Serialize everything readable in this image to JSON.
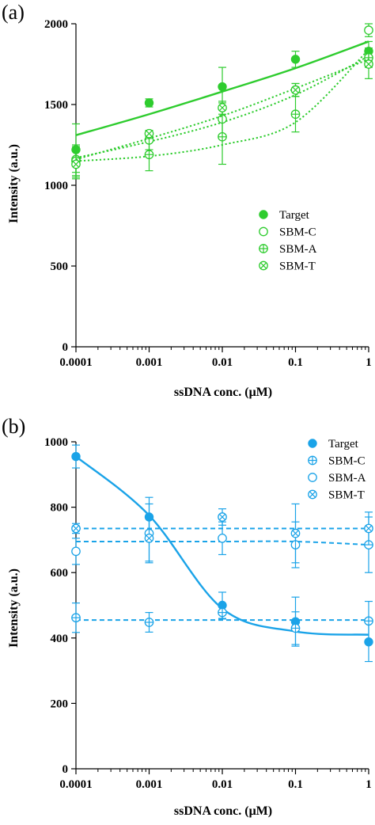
{
  "chart_data": [
    {
      "panel_label": "(a)",
      "type": "line",
      "x_scale": "log",
      "xlabel": "ssDNA conc. (μM)",
      "ylabel": "Intensity (a.u.)",
      "xlim": [
        0.0001,
        1
      ],
      "ylim": [
        0,
        2000
      ],
      "x_ticks": [
        0.0001,
        0.001,
        0.01,
        0.1,
        1
      ],
      "x_tick_labels": [
        "0.0001",
        "0.001",
        "0.01",
        "0.1",
        "1"
      ],
      "y_ticks": [
        0,
        500,
        1000,
        1500,
        2000
      ],
      "y_tick_labels": [
        "0",
        "500",
        "1000",
        "1500",
        "2000"
      ],
      "color": "#2ecc2e",
      "legend_position": "center-right",
      "x": [
        0.0001,
        0.001,
        0.01,
        0.1,
        1
      ],
      "series": [
        {
          "name": "Target",
          "marker": "filled-circle",
          "values": [
            1220,
            1510,
            1610,
            1780,
            1830
          ],
          "errors": [
            160,
            25,
            120,
            50,
            60
          ],
          "fit_style": "solid",
          "fit_values": [
            1310,
            1440,
            1580,
            1725,
            1890
          ]
        },
        {
          "name": "SBM-C",
          "marker": "open-circle",
          "values": [
            1160,
            1280,
            1410,
            1590,
            1960
          ],
          "errors": [
            80,
            60,
            100,
            40,
            40
          ],
          "fit_style": "dotted",
          "fit_values": [
            1170,
            1270,
            1390,
            1560,
            1800
          ]
        },
        {
          "name": "SBM-A",
          "marker": "circle-plus",
          "values": [
            1150,
            1190,
            1300,
            1440,
            1790
          ],
          "errors": [
            100,
            100,
            170,
            110,
            60
          ],
          "fit_style": "dotted",
          "fit_values": [
            1150,
            1180,
            1250,
            1390,
            1840
          ]
        },
        {
          "name": "SBM-T",
          "marker": "circle-cross",
          "values": [
            1130,
            1320,
            1480,
            1590,
            1750
          ],
          "errors": [
            90,
            20,
            40,
            40,
            90
          ],
          "fit_style": "dotted",
          "fit_values": [
            1160,
            1290,
            1430,
            1600,
            1780
          ]
        }
      ]
    },
    {
      "panel_label": "(b)",
      "type": "line",
      "x_scale": "log",
      "xlabel": "ssDNA conc. (μM)",
      "ylabel": "Intensity (a.u.)",
      "xlim": [
        0.0001,
        1
      ],
      "ylim": [
        0,
        1000
      ],
      "x_ticks": [
        0.0001,
        0.001,
        0.01,
        0.1,
        1
      ],
      "x_tick_labels": [
        "0.0001",
        "0.001",
        "0.01",
        "0.1",
        "1"
      ],
      "y_ticks": [
        0,
        200,
        400,
        600,
        800,
        1000
      ],
      "y_tick_labels": [
        "0",
        "200",
        "400",
        "600",
        "800",
        "1000"
      ],
      "color": "#1aa3e8",
      "legend_position": "top-right",
      "x": [
        0.0001,
        0.001,
        0.01,
        0.1,
        1
      ],
      "series": [
        {
          "name": "Target",
          "marker": "filled-circle",
          "values": [
            955,
            770,
            500,
            450,
            388
          ],
          "errors": [
            35,
            60,
            40,
            75,
            60
          ],
          "fit_style": "solid",
          "fit_values": [
            955,
            775,
            490,
            420,
            410
          ]
        },
        {
          "name": "SBM-C",
          "marker": "circle-plus",
          "values": [
            462,
            448,
            478,
            430,
            452
          ],
          "errors": [
            45,
            30,
            20,
            50,
            60
          ],
          "fit_style": "dashed",
          "fit_values": [
            455,
            455,
            455,
            455,
            455
          ]
        },
        {
          "name": "SBM-A",
          "marker": "open-circle",
          "values": [
            665,
            720,
            705,
            685,
            685
          ],
          "errors": [
            40,
            90,
            50,
            70,
            85
          ],
          "fit_style": "dashed",
          "fit_values": [
            695,
            695,
            695,
            695,
            685
          ]
        },
        {
          "name": "SBM-T",
          "marker": "circle-cross",
          "values": [
            735,
            705,
            770,
            720,
            735
          ],
          "errors": [
            15,
            70,
            25,
            90,
            50
          ],
          "fit_style": "dashed",
          "fit_values": [
            735,
            735,
            735,
            735,
            735
          ]
        }
      ]
    }
  ]
}
